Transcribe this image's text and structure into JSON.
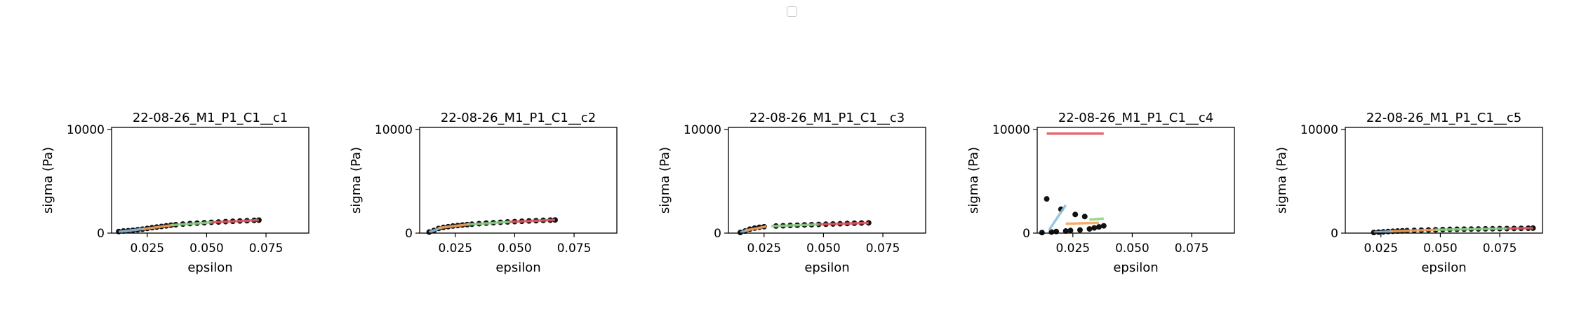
{
  "colors": {
    "points": "#111111",
    "fit1": "#8fbfe0",
    "fit2": "#f5a55e",
    "fit3": "#8ed388",
    "fit4": "#e25a63",
    "axis": "#000000",
    "legend_border": "#c8c8c8"
  },
  "legend": {
    "entries": []
  },
  "chart_data": [
    {
      "type": "scatter",
      "title": "22-08-26_M1_P1_C1__c1",
      "xlabel": "epsilon",
      "ylabel": "sigma (Pa)",
      "xlim": [
        0.01,
        0.093
      ],
      "ylim": [
        0,
        10200
      ],
      "xticks": [
        0.025,
        0.05,
        0.075
      ],
      "xtick_labels": [
        "0.025",
        "0.050",
        "0.075"
      ],
      "yticks": [
        0,
        10000
      ],
      "ytick_labels": [
        "0",
        "10000"
      ],
      "points": [
        [
          0.013,
          150
        ],
        [
          0.015,
          200
        ],
        [
          0.017,
          230
        ],
        [
          0.019,
          270
        ],
        [
          0.021,
          330
        ],
        [
          0.023,
          380
        ],
        [
          0.025,
          450
        ],
        [
          0.027,
          520
        ],
        [
          0.029,
          580
        ],
        [
          0.031,
          640
        ],
        [
          0.033,
          700
        ],
        [
          0.035,
          760
        ],
        [
          0.037,
          810
        ],
        [
          0.04,
          870
        ],
        [
          0.043,
          920
        ],
        [
          0.046,
          960
        ],
        [
          0.049,
          1000
        ],
        [
          0.052,
          1040
        ],
        [
          0.055,
          1070
        ],
        [
          0.058,
          1110
        ],
        [
          0.061,
          1140
        ],
        [
          0.064,
          1170
        ],
        [
          0.067,
          1200
        ],
        [
          0.07,
          1230
        ],
        [
          0.072,
          1250
        ]
      ],
      "fits": [
        {
          "x": [
            0.013,
            0.024
          ],
          "y": [
            120,
            420
          ]
        },
        {
          "x": [
            0.023,
            0.036
          ],
          "y": [
            380,
            780
          ]
        },
        {
          "x": [
            0.035,
            0.054
          ],
          "y": [
            770,
            1060
          ]
        },
        {
          "x": [
            0.052,
            0.072
          ],
          "y": [
            1040,
            1250
          ]
        }
      ]
    },
    {
      "type": "scatter",
      "title": "22-08-26_M1_P1_C1__c2",
      "xlabel": "epsilon",
      "ylabel": "sigma (Pa)",
      "xlim": [
        0.01,
        0.093
      ],
      "ylim": [
        0,
        10200
      ],
      "xticks": [
        0.025,
        0.05,
        0.075
      ],
      "xtick_labels": [
        "0.025",
        "0.050",
        "0.075"
      ],
      "yticks": [
        0,
        10000
      ],
      "ytick_labels": [
        "0",
        "10000"
      ],
      "points": [
        [
          0.014,
          100
        ],
        [
          0.016,
          250
        ],
        [
          0.018,
          450
        ],
        [
          0.02,
          550
        ],
        [
          0.022,
          620
        ],
        [
          0.024,
          680
        ],
        [
          0.026,
          730
        ],
        [
          0.028,
          780
        ],
        [
          0.03,
          820
        ],
        [
          0.032,
          860
        ],
        [
          0.035,
          910
        ],
        [
          0.038,
          960
        ],
        [
          0.041,
          1000
        ],
        [
          0.044,
          1040
        ],
        [
          0.047,
          1080
        ],
        [
          0.05,
          1110
        ],
        [
          0.053,
          1140
        ],
        [
          0.056,
          1170
        ],
        [
          0.059,
          1200
        ],
        [
          0.062,
          1230
        ],
        [
          0.065,
          1250
        ],
        [
          0.067,
          1270
        ]
      ],
      "fits": [
        {
          "x": [
            0.014,
            0.019
          ],
          "y": [
            80,
            520
          ]
        },
        {
          "x": [
            0.018,
            0.031
          ],
          "y": [
            500,
            850
          ]
        },
        {
          "x": [
            0.03,
            0.049
          ],
          "y": [
            830,
            1100
          ]
        },
        {
          "x": [
            0.048,
            0.067
          ],
          "y": [
            1090,
            1270
          ]
        }
      ]
    },
    {
      "type": "scatter",
      "title": "22-08-26_M1_P1_C1__c3",
      "xlabel": "epsilon",
      "ylabel": "sigma (Pa)",
      "xlim": [
        0.01,
        0.093
      ],
      "ylim": [
        0,
        10200
      ],
      "xticks": [
        0.025,
        0.05,
        0.075
      ],
      "xtick_labels": [
        "0.025",
        "0.050",
        "0.075"
      ],
      "yticks": [
        0,
        10000
      ],
      "ytick_labels": [
        "0",
        "10000"
      ],
      "points": [
        [
          0.015,
          60
        ],
        [
          0.017,
          200
        ],
        [
          0.019,
          380
        ],
        [
          0.021,
          480
        ],
        [
          0.023,
          560
        ],
        [
          0.025,
          620
        ],
        [
          0.03,
          680
        ],
        [
          0.033,
          710
        ],
        [
          0.036,
          740
        ],
        [
          0.039,
          760
        ],
        [
          0.042,
          790
        ],
        [
          0.045,
          810
        ],
        [
          0.048,
          840
        ],
        [
          0.051,
          860
        ],
        [
          0.054,
          880
        ],
        [
          0.057,
          900
        ],
        [
          0.06,
          930
        ],
        [
          0.063,
          950
        ],
        [
          0.066,
          970
        ],
        [
          0.069,
          990
        ]
      ],
      "fits": [
        {
          "x": [
            0.015,
            0.018
          ],
          "y": [
            40,
            300
          ]
        },
        {
          "x": [
            0.017,
            0.026
          ],
          "y": [
            250,
            640
          ]
        },
        {
          "x": [
            0.028,
            0.048
          ],
          "y": [
            670,
            840
          ]
        },
        {
          "x": [
            0.048,
            0.069
          ],
          "y": [
            840,
            990
          ]
        }
      ]
    },
    {
      "type": "scatter",
      "title": "22-08-26_M1_P1_C1__c4",
      "xlabel": "epsilon",
      "ylabel": "sigma (Pa)",
      "xlim": [
        0.01,
        0.093
      ],
      "ylim": [
        0,
        10200
      ],
      "xticks": [
        0.025,
        0.05,
        0.075
      ],
      "xtick_labels": [
        "0.025",
        "0.050",
        "0.075"
      ],
      "yticks": [
        0,
        10000
      ],
      "ytick_labels": [
        "0",
        "10000"
      ],
      "points": [
        [
          0.012,
          50
        ],
        [
          0.014,
          3300
        ],
        [
          0.016,
          100
        ],
        [
          0.018,
          150
        ],
        [
          0.02,
          2300
        ],
        [
          0.022,
          200
        ],
        [
          0.024,
          250
        ],
        [
          0.026,
          1800
        ],
        [
          0.028,
          300
        ],
        [
          0.03,
          1600
        ],
        [
          0.032,
          400
        ],
        [
          0.034,
          500
        ],
        [
          0.036,
          600
        ],
        [
          0.038,
          700
        ]
      ],
      "fits": [
        {
          "x": [
            0.015,
            0.022
          ],
          "y": [
            300,
            2700
          ]
        },
        {
          "x": [
            0.022,
            0.036
          ],
          "y": [
            900,
            1000
          ]
        },
        {
          "x": [
            0.032,
            0.038
          ],
          "y": [
            1300,
            1400
          ]
        },
        {
          "x": [
            0.014,
            0.038
          ],
          "y": [
            9600,
            9600
          ]
        }
      ]
    },
    {
      "type": "scatter",
      "title": "22-08-26_M1_P1_C1__c5",
      "xlabel": "epsilon",
      "ylabel": "sigma (Pa)",
      "xlim": [
        0.01,
        0.093
      ],
      "ylim": [
        0,
        10200
      ],
      "xticks": [
        0.025,
        0.05,
        0.075
      ],
      "xtick_labels": [
        "0.025",
        "0.050",
        "0.075"
      ],
      "yticks": [
        0,
        10000
      ],
      "ytick_labels": [
        "0",
        "10000"
      ],
      "points": [
        [
          0.022,
          60
        ],
        [
          0.024,
          90
        ],
        [
          0.026,
          120
        ],
        [
          0.028,
          150
        ],
        [
          0.03,
          180
        ],
        [
          0.032,
          200
        ],
        [
          0.034,
          220
        ],
        [
          0.036,
          240
        ],
        [
          0.039,
          260
        ],
        [
          0.042,
          280
        ],
        [
          0.045,
          300
        ],
        [
          0.048,
          320
        ],
        [
          0.051,
          340
        ],
        [
          0.054,
          360
        ],
        [
          0.057,
          370
        ],
        [
          0.06,
          380
        ],
        [
          0.063,
          390
        ],
        [
          0.066,
          400
        ],
        [
          0.069,
          410
        ],
        [
          0.072,
          420
        ],
        [
          0.075,
          430
        ],
        [
          0.078,
          440
        ],
        [
          0.081,
          450
        ],
        [
          0.084,
          460
        ],
        [
          0.087,
          470
        ],
        [
          0.089,
          480
        ]
      ],
      "fits": [
        {
          "x": [
            0.022,
            0.03
          ],
          "y": [
            60,
            180
          ]
        },
        {
          "x": [
            0.029,
            0.049
          ],
          "y": [
            170,
            330
          ]
        },
        {
          "x": [
            0.048,
            0.078
          ],
          "y": [
            320,
            440
          ]
        },
        {
          "x": [
            0.078,
            0.089
          ],
          "y": [
            440,
            480
          ]
        }
      ]
    }
  ]
}
